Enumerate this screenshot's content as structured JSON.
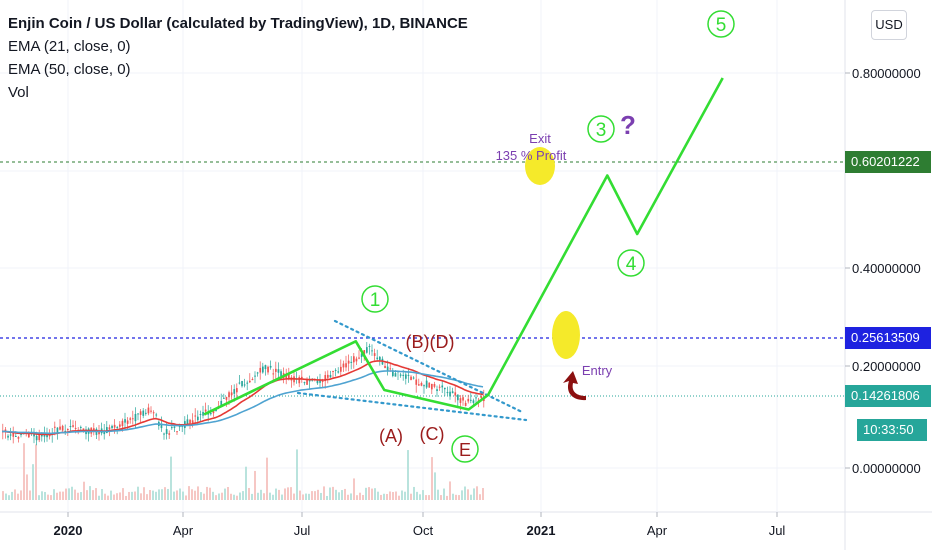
{
  "legend": {
    "title": "Enjin Coin / US Dollar (calculated by TradingView), 1D, BINANCE",
    "ema21": "EMA (21, close, 0)",
    "ema50": "EMA (50, close, 0)",
    "vol": "Vol"
  },
  "currency_button": "USD",
  "colors": {
    "wave_line": "#33dd33",
    "ema21": "#e53935",
    "ema50": "#4fa3d1",
    "price_line_green": "#2e7d32",
    "tag_blue": "#1e22e0",
    "tag_teal": "#26a69a",
    "annotation_red": "#9b1c1c",
    "highlight_yellow": "#f5ea2a",
    "purple_text": "#7b3fb0",
    "trend_dotted": "#3399cc"
  },
  "chart_data": {
    "type": "line",
    "x_ticks": [
      "2020",
      "Apr",
      "Jul",
      "Oct",
      "2021",
      "Apr",
      "Jul"
    ],
    "y_ticks": [
      "0.80000000",
      "0.40000000",
      "0.20000000",
      "0.00000000"
    ],
    "price_tags": [
      {
        "label": "0.60201222",
        "kind": "target"
      },
      {
        "label": "0.25613509",
        "kind": "entry"
      },
      {
        "label": "0.14261806",
        "kind": "current"
      },
      {
        "label": "10:33:50",
        "kind": "countdown"
      }
    ],
    "annotations": {
      "exit": "Exit",
      "profit": "135 % Profit",
      "entry": "Entry",
      "question": "?",
      "waves": [
        "1",
        "3",
        "4",
        "5"
      ],
      "wave_e": "E",
      "correction_labels": [
        "(A)",
        "(B)(D)",
        "(C)"
      ]
    },
    "wave_path_price": [
      {
        "date": "2020-04-15",
        "price": 0.11
      },
      {
        "date": "2020-08-10",
        "price": 0.26
      },
      {
        "date": "2020-09-01",
        "price": 0.16
      },
      {
        "date": "2020-11-05",
        "price": 0.12
      },
      {
        "date": "2020-11-20",
        "price": 0.15
      },
      {
        "date": "2021-02-20",
        "price": 0.6
      },
      {
        "date": "2021-03-15",
        "price": 0.48
      },
      {
        "date": "2021-05-20",
        "price": 0.8
      }
    ]
  }
}
